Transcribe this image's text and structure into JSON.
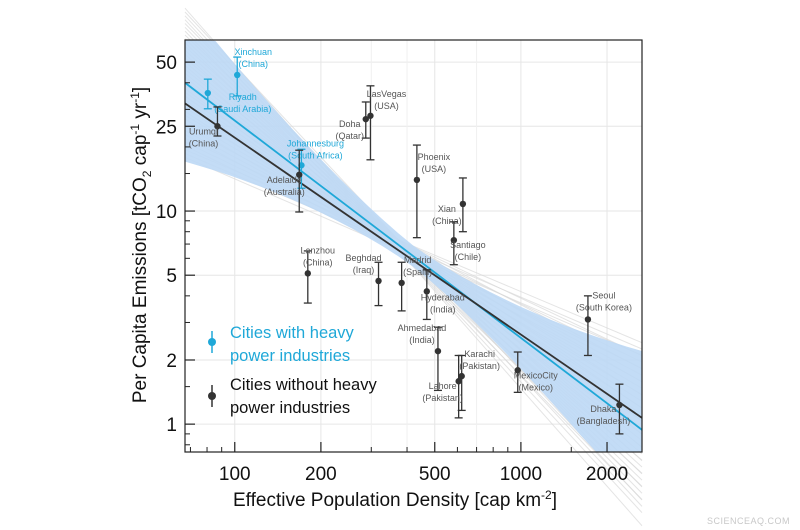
{
  "chart_data": {
    "type": "scatter",
    "xlabel": "Effective Population Density [cap km",
    "xlabel_sup": "-2",
    "xlabel_end": "]",
    "ylabel_parts": [
      "Per Capita Emissions [tCO",
      "2",
      " cap",
      "-1",
      " yr",
      "-1",
      "]"
    ],
    "xscale": "log",
    "yscale": "log",
    "xlim": [
      67,
      2650
    ],
    "ylim": [
      0.74,
      63.5
    ],
    "xticks": [
      100,
      200,
      500,
      1000,
      2000
    ],
    "xtick_labels": [
      "100",
      "200",
      "500",
      "1000",
      "2000"
    ],
    "yticks": [
      1,
      2,
      5,
      10,
      25,
      50
    ],
    "ytick_labels": [
      "1",
      "2",
      "5",
      "10",
      "25",
      "50"
    ],
    "grid": true,
    "legend_placement": "lower-left",
    "colors": {
      "heavy": "#1fa8d8",
      "other": "#333333",
      "band": "#bcd8f5",
      "ensemble": "#d9d9d9"
    },
    "series": [
      {
        "name": "Cities with heavy power industries",
        "legend_lines": [
          "Cities with heavy",
          "power industries"
        ],
        "color": "#1fa8d8",
        "points": [
          {
            "city": "Xinchuan",
            "country": "(China)",
            "x": 102,
            "y": 43.5,
            "lo": 34.7,
            "hi": 52.8
          },
          {
            "city": "Riyadh",
            "country": "(Saudi Arabia)",
            "x": 80.5,
            "y": 35.8,
            "lo": 30.2,
            "hi": 41.6
          },
          {
            "city": "Johannesburg",
            "country": "(South Africa)",
            "x": 171,
            "y": 16.4,
            "lo": 12.8,
            "hi": 19.5
          }
        ],
        "fit": {
          "x": [
            67,
            2650
          ],
          "y": [
            40,
            0.94
          ]
        }
      },
      {
        "name": "Cities without heavy power industries",
        "legend_lines": [
          "Cities without heavy",
          "power industries"
        ],
        "color": "#333333",
        "points": [
          {
            "city": "Urumqi",
            "country": "(China)",
            "x": 87,
            "y": 25,
            "lo": 22.5,
            "hi": 30.8
          },
          {
            "city": "Adelaide",
            "country": "(Australia)",
            "x": 168,
            "y": 14.8,
            "lo": 9.9,
            "hi": 19.3
          },
          {
            "city": "Doha",
            "country": "(Qatar)",
            "x": 287,
            "y": 27,
            "lo": 22,
            "hi": 32.5
          },
          {
            "city": "LasVegas",
            "country": "(USA)",
            "x": 298,
            "y": 28,
            "lo": 17.4,
            "hi": 38.7
          },
          {
            "city": "Phoenix",
            "country": "(USA)",
            "x": 433,
            "y": 14,
            "lo": 7.5,
            "hi": 20.4
          },
          {
            "city": "Xian",
            "country": "(China)",
            "x": 627,
            "y": 10.8,
            "lo": 8.0,
            "hi": 14.3
          },
          {
            "city": "Santiago",
            "country": "(Chile)",
            "x": 583,
            "y": 7.3,
            "lo": 5.6,
            "hi": 8.9
          },
          {
            "city": "Lanzhou",
            "country": "(China)",
            "x": 180,
            "y": 5.1,
            "lo": 3.7,
            "hi": 6.5
          },
          {
            "city": "Beghdad",
            "country": "(Iraq)",
            "x": 318,
            "y": 4.7,
            "lo": 3.6,
            "hi": 5.75
          },
          {
            "city": "Madrid",
            "country": "(Spain)",
            "x": 383,
            "y": 4.6,
            "lo": 3.4,
            "hi": 5.75
          },
          {
            "city": "Hyderabad",
            "country": "(India)",
            "x": 469,
            "y": 4.2,
            "lo": 3.1,
            "hi": 5.3
          },
          {
            "city": "Ahmedabad",
            "country": "(India)",
            "x": 513,
            "y": 2.2,
            "lo": 1.44,
            "hi": 2.85
          },
          {
            "city": "Karachi",
            "country": "(Pakistan)",
            "x": 621,
            "y": 1.68,
            "lo": 1.16,
            "hi": 2.1
          },
          {
            "city": "Lahore",
            "country": "(Pakistan)",
            "x": 606,
            "y": 1.59,
            "lo": 1.07,
            "hi": 2.1
          },
          {
            "city": "MexicoCity",
            "country": "(Mexico)",
            "x": 975,
            "y": 1.79,
            "lo": 1.41,
            "hi": 2.18
          },
          {
            "city": "Seoul",
            "country": "(South Korea)",
            "x": 1715,
            "y": 3.1,
            "lo": 2.1,
            "hi": 4.0
          },
          {
            "city": "Dhaka",
            "country": "(Bangladesh)",
            "x": 2210,
            "y": 1.23,
            "lo": 0.9,
            "hi": 1.54
          }
        ],
        "fit": {
          "x": [
            67,
            2650
          ],
          "y": [
            32,
            1.07
          ]
        }
      }
    ]
  },
  "watermark": "SCIENCEAQ.COM"
}
